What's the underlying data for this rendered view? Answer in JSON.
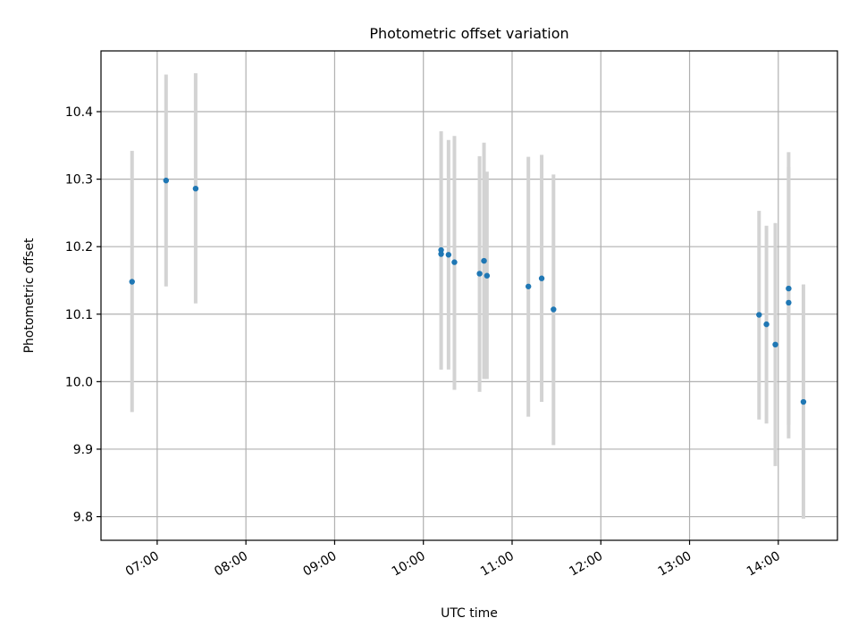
{
  "chart_data": {
    "type": "scatter",
    "title": "Photometric offset variation",
    "xlabel": "UTC time",
    "ylabel": "Photometric offset",
    "x_ticks": [
      "07:00",
      "08:00",
      "09:00",
      "10:00",
      "11:00",
      "12:00",
      "13:00",
      "14:00"
    ],
    "y_ticks": [
      "9.8",
      "9.9",
      "10.0",
      "10.1",
      "10.2",
      "10.3",
      "10.4"
    ],
    "xlim": [
      "06:22",
      "14:40"
    ],
    "ylim": [
      9.765,
      10.49
    ],
    "grid": true,
    "legend": "none",
    "colors": {
      "marker": "#1f77b4",
      "errorbar": "#d3d3d3",
      "grid": "#b0b0b0"
    },
    "points": [
      {
        "time": "06:43",
        "y": 10.148,
        "err_low": 9.955,
        "err_high": 10.342
      },
      {
        "time": "07:06",
        "y": 10.298,
        "err_low": 10.141,
        "err_high": 10.455
      },
      {
        "time": "07:26",
        "y": 10.286,
        "err_low": 10.116,
        "err_high": 10.457
      },
      {
        "time": "10:12",
        "y": 10.195,
        "err_low": 10.018,
        "err_high": 10.371
      },
      {
        "time": "10:12",
        "y": 10.189,
        "err_low": 10.018,
        "err_high": 10.36
      },
      {
        "time": "10:17",
        "y": 10.188,
        "err_low": 10.018,
        "err_high": 10.358
      },
      {
        "time": "10:21",
        "y": 10.177,
        "err_low": 9.988,
        "err_high": 10.364
      },
      {
        "time": "10:38",
        "y": 10.16,
        "err_low": 9.985,
        "err_high": 10.334
      },
      {
        "time": "10:41",
        "y": 10.179,
        "err_low": 10.004,
        "err_high": 10.354
      },
      {
        "time": "10:43",
        "y": 10.157,
        "err_low": 10.004,
        "err_high": 10.311
      },
      {
        "time": "11:11",
        "y": 10.141,
        "err_low": 9.948,
        "err_high": 10.333
      },
      {
        "time": "11:20",
        "y": 10.153,
        "err_low": 9.97,
        "err_high": 10.336
      },
      {
        "time": "11:28",
        "y": 10.107,
        "err_low": 9.906,
        "err_high": 10.307
      },
      {
        "time": "13:47",
        "y": 10.099,
        "err_low": 9.944,
        "err_high": 10.253
      },
      {
        "time": "13:52",
        "y": 10.085,
        "err_low": 9.938,
        "err_high": 10.231
      },
      {
        "time": "13:58",
        "y": 10.055,
        "err_low": 9.875,
        "err_high": 10.235
      },
      {
        "time": "14:07",
        "y": 10.138,
        "err_low": 9.936,
        "err_high": 10.34
      },
      {
        "time": "14:07",
        "y": 10.117,
        "err_low": 9.916,
        "err_high": 10.318
      },
      {
        "time": "14:17",
        "y": 9.97,
        "err_low": 9.797,
        "err_high": 10.144
      }
    ]
  }
}
